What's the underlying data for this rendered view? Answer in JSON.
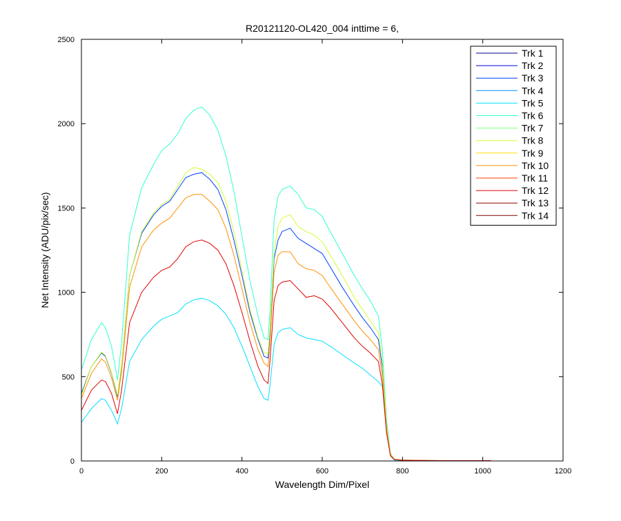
{
  "figure": {
    "background": "#ffffff"
  },
  "chart_data": {
    "type": "line",
    "title": "R20121120-OL420_004 inttime = 6,",
    "xlabel": "Wavelength Dim/Pixel",
    "ylabel": "Net Intensity (ADU/pix/sec)",
    "xlim": [
      0,
      1200
    ],
    "ylim": [
      0,
      2500
    ],
    "xticks": [
      0,
      200,
      400,
      600,
      800,
      1000,
      1200
    ],
    "yticks": [
      0,
      500,
      1000,
      1500,
      2000,
      2500
    ],
    "grid": false,
    "legend_position": "top-right",
    "x": [
      0,
      25,
      50,
      60,
      75,
      90,
      100,
      120,
      150,
      180,
      200,
      220,
      240,
      260,
      280,
      300,
      320,
      340,
      360,
      380,
      400,
      420,
      440,
      455,
      465,
      470,
      480,
      490,
      500,
      520,
      540,
      560,
      580,
      600,
      620,
      650,
      680,
      700,
      720,
      740,
      750,
      760,
      770,
      780,
      800,
      850,
      900,
      1000,
      1020
    ],
    "series": [
      {
        "name": "Trk 1",
        "color": "#00008F",
        "values": [
          0,
          0,
          0,
          0,
          0,
          0,
          0,
          0,
          0,
          0,
          0,
          0,
          0,
          0,
          0,
          0,
          0,
          0,
          0,
          0,
          0,
          0,
          0,
          0,
          0,
          0,
          0,
          0,
          0,
          0,
          0,
          0,
          0,
          0,
          0,
          0,
          0,
          0,
          0,
          0,
          0,
          0,
          0,
          0,
          0,
          0,
          0,
          0,
          0
        ]
      },
      {
        "name": "Trk 2",
        "color": "#0000DF",
        "values": [
          0,
          0,
          0,
          0,
          0,
          0,
          0,
          0,
          0,
          0,
          0,
          0,
          0,
          0,
          0,
          0,
          0,
          0,
          0,
          0,
          0,
          0,
          0,
          0,
          0,
          0,
          0,
          0,
          0,
          0,
          0,
          0,
          0,
          0,
          0,
          0,
          0,
          0,
          0,
          0,
          0,
          0,
          0,
          0,
          0,
          0,
          0,
          0,
          0
        ]
      },
      {
        "name": "Trk 3",
        "color": "#003FFF",
        "values": [
          400,
          560,
          640,
          620,
          520,
          380,
          560,
          1100,
          1350,
          1460,
          1510,
          1540,
          1610,
          1680,
          1700,
          1710,
          1670,
          1610,
          1490,
          1310,
          1100,
          880,
          720,
          620,
          610,
          760,
          1200,
          1310,
          1360,
          1380,
          1320,
          1290,
          1260,
          1230,
          1150,
          1030,
          920,
          850,
          790,
          720,
          550,
          200,
          40,
          10,
          5,
          3,
          2,
          2,
          2
        ]
      },
      {
        "name": "Trk 4",
        "color": "#008FFF",
        "values": [
          0,
          0,
          0,
          0,
          0,
          0,
          0,
          0,
          0,
          0,
          0,
          0,
          0,
          0,
          0,
          0,
          0,
          0,
          0,
          0,
          0,
          0,
          0,
          0,
          0,
          0,
          0,
          0,
          0,
          0,
          0,
          0,
          0,
          0,
          0,
          0,
          0,
          0,
          0,
          0,
          0,
          0,
          0,
          0,
          0,
          0,
          0,
          0,
          0
        ]
      },
      {
        "name": "Trk 5",
        "color": "#00DFFF",
        "values": [
          230,
          310,
          370,
          360,
          300,
          220,
          310,
          590,
          720,
          800,
          840,
          860,
          880,
          930,
          955,
          965,
          950,
          920,
          870,
          790,
          680,
          560,
          440,
          370,
          360,
          450,
          690,
          760,
          780,
          790,
          750,
          730,
          720,
          710,
          680,
          630,
          580,
          550,
          510,
          470,
          440,
          180,
          30,
          5,
          3,
          2,
          2,
          2,
          2
        ]
      },
      {
        "name": "Trk 6",
        "color": "#2FFFCF",
        "values": [
          540,
          720,
          820,
          790,
          680,
          480,
          700,
          1340,
          1620,
          1760,
          1840,
          1880,
          1940,
          2030,
          2080,
          2100,
          2050,
          1960,
          1810,
          1600,
          1330,
          1070,
          860,
          730,
          720,
          900,
          1430,
          1570,
          1610,
          1630,
          1580,
          1500,
          1490,
          1450,
          1360,
          1230,
          1100,
          1020,
          950,
          860,
          650,
          250,
          45,
          10,
          5,
          3,
          2,
          2,
          2
        ]
      },
      {
        "name": "Trk 7",
        "color": "#7FFF7F",
        "values": [
          0,
          0,
          0,
          0,
          0,
          0,
          0,
          0,
          0,
          0,
          0,
          0,
          0,
          0,
          0,
          0,
          0,
          0,
          0,
          0,
          0,
          0,
          0,
          0,
          0,
          0,
          0,
          0,
          0,
          0,
          0,
          0,
          0,
          0,
          0,
          0,
          0,
          0,
          0,
          0,
          0,
          0,
          0,
          0,
          0,
          0,
          0,
          0,
          0
        ]
      },
      {
        "name": "Trk 8",
        "color": "#CFFF2F",
        "values": [
          390,
          560,
          645,
          625,
          525,
          390,
          570,
          1100,
          1360,
          1470,
          1520,
          1550,
          1630,
          1710,
          1740,
          1730,
          1700,
          1650,
          1540,
          1360,
          1130,
          900,
          730,
          640,
          640,
          790,
          1240,
          1390,
          1440,
          1460,
          1390,
          1360,
          1340,
          1300,
          1220,
          1100,
          970,
          900,
          830,
          760,
          580,
          210,
          40,
          10,
          5,
          3,
          2,
          2,
          2
        ]
      },
      {
        "name": "Trk 9",
        "color": "#FFDF00",
        "values": [
          0,
          0,
          0,
          0,
          0,
          0,
          0,
          0,
          0,
          0,
          0,
          0,
          0,
          0,
          0,
          0,
          0,
          0,
          0,
          0,
          0,
          0,
          0,
          0,
          0,
          0,
          0,
          0,
          0,
          0,
          0,
          0,
          0,
          0,
          0,
          0,
          0,
          0,
          0,
          0,
          0,
          0,
          0,
          0,
          0,
          0,
          0,
          0,
          0
        ]
      },
      {
        "name": "Trk 10",
        "color": "#FF8F00",
        "values": [
          370,
          520,
          605,
          585,
          495,
          360,
          530,
          1030,
          1270,
          1370,
          1410,
          1440,
          1500,
          1560,
          1580,
          1580,
          1540,
          1490,
          1380,
          1220,
          1020,
          820,
          660,
          580,
          560,
          710,
          1120,
          1220,
          1240,
          1240,
          1170,
          1140,
          1130,
          1100,
          1030,
          930,
          830,
          770,
          720,
          660,
          500,
          190,
          35,
          10,
          5,
          3,
          2,
          2,
          2
        ]
      },
      {
        "name": "Trk 11",
        "color": "#FF3F00",
        "values": [
          0,
          0,
          0,
          0,
          0,
          0,
          0,
          0,
          0,
          0,
          0,
          0,
          0,
          0,
          0,
          0,
          0,
          0,
          0,
          0,
          0,
          0,
          0,
          0,
          0,
          0,
          0,
          0,
          0,
          0,
          0,
          0,
          0,
          0,
          0,
          0,
          0,
          0,
          0,
          0,
          0,
          0,
          0,
          0,
          0,
          0,
          0,
          0,
          0
        ]
      },
      {
        "name": "Trk 12",
        "color": "#DF0000",
        "values": [
          300,
          420,
          480,
          470,
          400,
          280,
          420,
          820,
          1000,
          1090,
          1130,
          1150,
          1200,
          1270,
          1300,
          1310,
          1290,
          1250,
          1170,
          1040,
          880,
          710,
          560,
          480,
          460,
          600,
          950,
          1040,
          1060,
          1070,
          1020,
          970,
          980,
          960,
          910,
          820,
          730,
          680,
          640,
          590,
          450,
          170,
          30,
          8,
          4,
          3,
          2,
          2,
          2
        ]
      },
      {
        "name": "Trk 13",
        "color": "#8F0000",
        "values": [
          0,
          0,
          0,
          0,
          0,
          0,
          0,
          0,
          0,
          0,
          0,
          0,
          0,
          0,
          0,
          0,
          0,
          0,
          0,
          0,
          0,
          0,
          0,
          0,
          0,
          0,
          0,
          0,
          0,
          0,
          0,
          0,
          0,
          0,
          0,
          0,
          0,
          0,
          0,
          0,
          0,
          0,
          0,
          0,
          0,
          0,
          0,
          0,
          0
        ]
      },
      {
        "name": "Trk 14",
        "color": "#7F0000",
        "values": [
          0,
          0,
          0,
          0,
          0,
          0,
          0,
          0,
          0,
          0,
          0,
          0,
          0,
          0,
          0,
          0,
          0,
          0,
          0,
          0,
          0,
          0,
          0,
          0,
          0,
          0,
          0,
          0,
          0,
          0,
          0,
          0,
          0,
          0,
          0,
          0,
          0,
          0,
          0,
          0,
          0,
          0,
          0,
          0,
          0,
          0,
          0,
          0,
          0
        ]
      }
    ]
  }
}
